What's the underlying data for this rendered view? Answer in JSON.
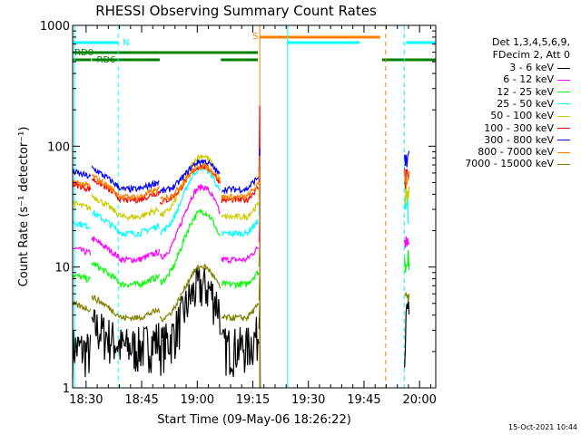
{
  "chart_data": {
    "type": "line",
    "title": "RHESSI Observing Summary Count Rates",
    "xlabel": "Start Time (09-May-06 18:26:22)",
    "ylabel": "Count Rate (s⁻¹ detector⁻¹)",
    "yscale": "log",
    "ylim": [
      1,
      1000
    ],
    "xlim_minutes_after_start": [
      0,
      98
    ],
    "x_ticks": [
      "18:30",
      "18:45",
      "19:00",
      "19:15",
      "19:30",
      "19:45",
      "20:00"
    ],
    "y_ticks": [
      "1",
      "10",
      "100",
      "1000"
    ],
    "footer_date": "15-Oct-2021 10:44",
    "legend_header": [
      "Det 1,3,4,5,6,9,",
      "FDecim 2, Att 0"
    ],
    "flags": [
      {
        "label": "N",
        "color": "#00ffff"
      },
      {
        "label": "S",
        "color": "#ff8000"
      },
      {
        "label": "RD0",
        "color": "#008000"
      },
      {
        "label": "RD6",
        "color": "#008000"
      }
    ],
    "series": [
      {
        "name": "3 - 6 keV",
        "color": "#000000",
        "base": 2.2,
        "peak": 3.2
      },
      {
        "name": "6 - 12 keV",
        "color": "#ff00ff",
        "base": 11.5,
        "peak": 4
      },
      {
        "name": "12 - 25 keV",
        "color": "#00ff00",
        "base": 7.2,
        "peak": 4
      },
      {
        "name": "25 - 50 keV",
        "color": "#00ffff",
        "base": 19,
        "peak": 3.5
      },
      {
        "name": "50 - 100 keV",
        "color": "#cccc00",
        "base": 26,
        "peak": 3.2
      },
      {
        "name": "100 - 300 keV",
        "color": "#ff0000",
        "base": 36,
        "peak": 2.0
      },
      {
        "name": "300 - 800 keV",
        "color": "#0000ff",
        "base": 44,
        "peak": 1.8
      },
      {
        "name": "800 - 7000 keV",
        "color": "#ff8000",
        "base": 38,
        "peak": 1.9
      },
      {
        "name": "7000 - 15000 keV",
        "color": "#808000",
        "base": 3.8,
        "peak": 2.8
      }
    ]
  }
}
